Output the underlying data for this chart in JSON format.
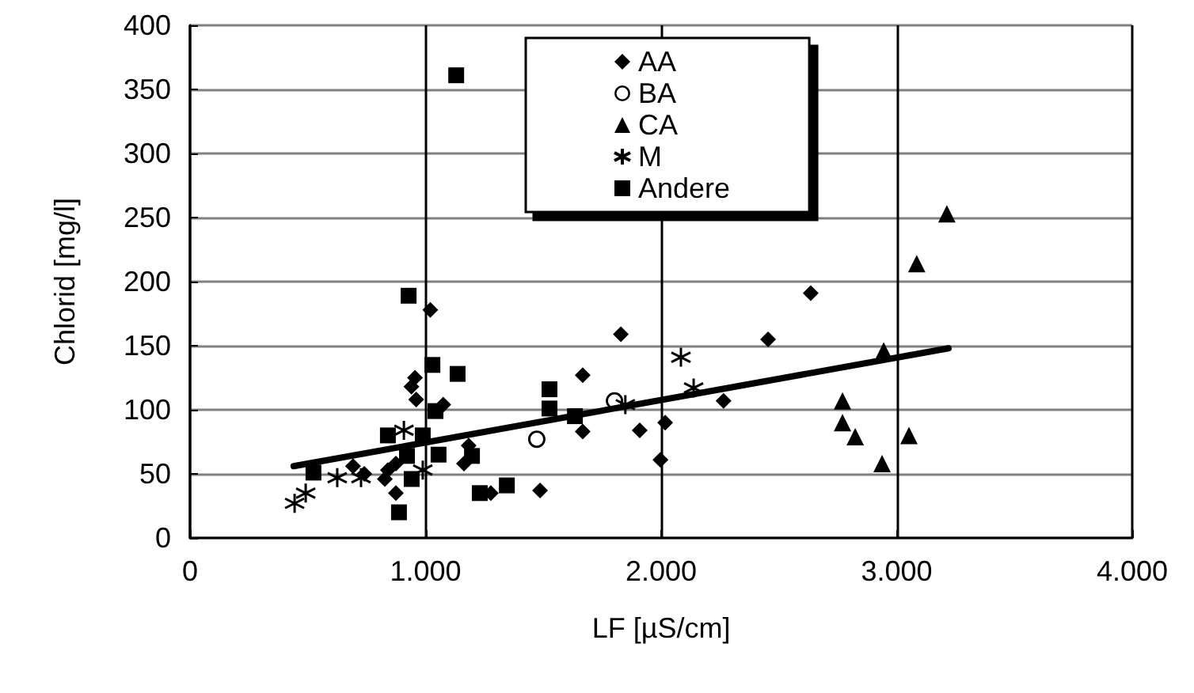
{
  "chart_data": {
    "type": "scatter",
    "xlabel": "LF [µS/cm]",
    "ylabel": "Chlorid [mg/l]",
    "xlim": [
      0,
      4000
    ],
    "xticks": [
      0,
      {
        "value": 1000,
        "label": "1.000"
      },
      {
        "value": 2000,
        "label": "2.000"
      },
      {
        "value": 3000,
        "label": "3.000"
      },
      {
        "value": 4000,
        "label": "4.000"
      }
    ],
    "ylim": [
      0,
      400
    ],
    "yticks": [
      0,
      50,
      100,
      150,
      200,
      250,
      300,
      350,
      400
    ],
    "grid": true,
    "legend": "top",
    "series": [
      {
        "name": "AA",
        "color": "#000000",
        "marker": "diamond",
        "x": [
          1020,
          940,
          955,
          960,
          1075,
          874,
          874,
          840,
          827,
          692,
          740,
          1183,
          1163,
          1277,
          1486,
          1667,
          1667,
          2635,
          1829,
          2454,
          2265,
          1909,
          2017,
          1997
        ],
        "values": [
          178,
          118,
          125,
          108,
          104,
          35,
          58,
          53,
          46,
          56,
          50,
          72,
          58,
          35,
          37,
          127,
          83,
          191,
          159,
          155,
          107,
          84,
          90,
          61
        ]
      },
      {
        "name": "BA",
        "color": "#000000",
        "marker": "circle",
        "x": [
          1472,
          1802
        ],
        "values": [
          77,
          107
        ]
      },
      {
        "name": "CA",
        "color": "#000000",
        "marker": "triangle",
        "x": [
          3213,
          3085,
          2945,
          2770,
          2770,
          2824,
          3052,
          2938
        ],
        "values": [
          253,
          214,
          146,
          107,
          90,
          79,
          80,
          58
        ]
      },
      {
        "name": "M",
        "color": "#000000",
        "marker": "cross",
        "x": [
          444,
          491,
          625,
          726,
          908,
          988,
          2084,
          2138,
          1848
        ],
        "values": [
          27,
          35,
          47,
          47,
          84,
          53,
          141,
          117,
          104
        ]
      },
      {
        "name": "Andere",
        "color": "#000000",
        "marker": "square",
        "x": [
          928,
          1029,
          1136,
          1526,
          1526,
          1634,
          840,
          988,
          524,
          941,
          887,
          1230,
          1345,
          1042,
          1055,
          921,
          1197,
          1130
        ],
        "values": [
          189,
          135,
          128,
          116,
          101,
          95,
          80,
          80,
          51,
          46,
          20,
          35,
          41,
          99,
          65,
          64,
          64,
          361
        ]
      },
      {
        "type": "line",
        "color": "#000000",
        "marker": "none",
        "x": [
          440,
          3220
        ],
        "values": [
          56,
          148
        ]
      }
    ]
  }
}
